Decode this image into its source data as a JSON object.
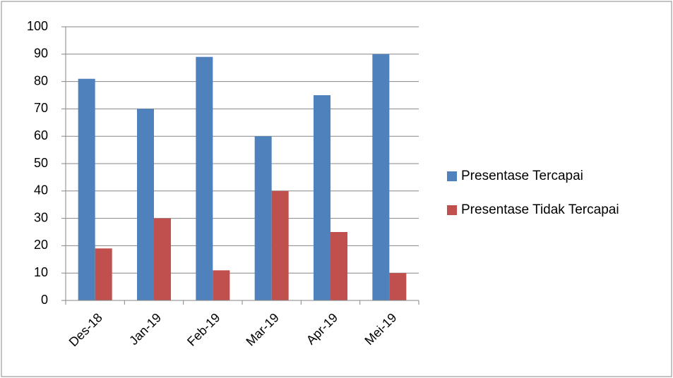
{
  "chart_data": {
    "type": "bar",
    "categories": [
      "Des-18",
      "Jan-19",
      "Feb-19",
      "Mar-19",
      "Apr-19",
      "Mei-19"
    ],
    "series": [
      {
        "name": "Presentase Tercapai",
        "color": "#4f81bd",
        "values": [
          81,
          70,
          89,
          60,
          75,
          90
        ]
      },
      {
        "name": "Presentase Tidak Tercapai",
        "color": "#c0504d",
        "values": [
          19,
          30,
          11,
          40,
          25,
          10
        ]
      }
    ],
    "ylim": [
      0,
      100
    ],
    "yticks": [
      0,
      10,
      20,
      30,
      40,
      50,
      60,
      70,
      80,
      90,
      100
    ],
    "grid": true,
    "legend": "right"
  }
}
